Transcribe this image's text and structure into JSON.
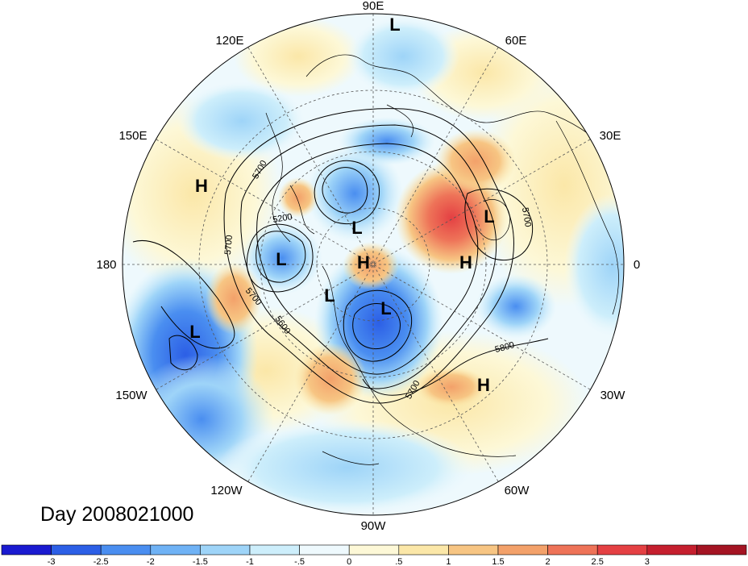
{
  "title": "Day 2008021000",
  "longitude_labels": [
    {
      "key": "90e",
      "text": "90E"
    },
    {
      "key": "60e",
      "text": "60E"
    },
    {
      "key": "30e",
      "text": "30E"
    },
    {
      "key": "0",
      "text": "0"
    },
    {
      "key": "30w",
      "text": "30W"
    },
    {
      "key": "60w",
      "text": "60W"
    },
    {
      "key": "90w",
      "text": "90W"
    },
    {
      "key": "120w",
      "text": "120W"
    },
    {
      "key": "150w",
      "text": "150W"
    },
    {
      "key": "180",
      "text": "180"
    },
    {
      "key": "150e",
      "text": "150E"
    },
    {
      "key": "120e",
      "text": "120E"
    }
  ],
  "pressure_centers": [
    {
      "key": "l-top",
      "text": "L"
    },
    {
      "key": "h-pacific",
      "text": "H"
    },
    {
      "key": "l-siberia",
      "text": "L"
    },
    {
      "key": "l-bering",
      "text": "L"
    },
    {
      "key": "h-pole",
      "text": "H"
    },
    {
      "key": "l-scandinavia",
      "text": "L"
    },
    {
      "key": "h-europe",
      "text": "H"
    },
    {
      "key": "l-alaska",
      "text": "L"
    },
    {
      "key": "l-canada",
      "text": "L"
    },
    {
      "key": "l-gulf-alaska",
      "text": "L"
    },
    {
      "key": "h-atlantic",
      "text": "H"
    }
  ],
  "contour_labels": [
    {
      "key": "c5700a",
      "text": "5700"
    },
    {
      "key": "c5200",
      "text": "5200"
    },
    {
      "key": "c5700b",
      "text": "5700"
    },
    {
      "key": "c5700c",
      "text": "5700"
    },
    {
      "key": "c5600",
      "text": "5600"
    },
    {
      "key": "c5700d",
      "text": "5700"
    },
    {
      "key": "c5800",
      "text": "5800"
    },
    {
      "key": "c5700e",
      "text": "5700"
    }
  ],
  "colorbar": {
    "colors": [
      "#1a1ad0",
      "#2c5fe6",
      "#4a8ef0",
      "#6fb2f5",
      "#9ed4f8",
      "#cdeefb",
      "#eef9fd",
      "#fdf8d7",
      "#fbe7a8",
      "#f7c583",
      "#f3a16a",
      "#ee7358",
      "#e44043",
      "#c51f2e",
      "#a41423"
    ],
    "ticks": [
      "-3",
      "-2.5",
      "-2",
      "-1.5",
      "-1",
      "-.5",
      "0",
      ".5",
      "1",
      "1.5",
      "2",
      "2.5",
      "3"
    ]
  }
}
